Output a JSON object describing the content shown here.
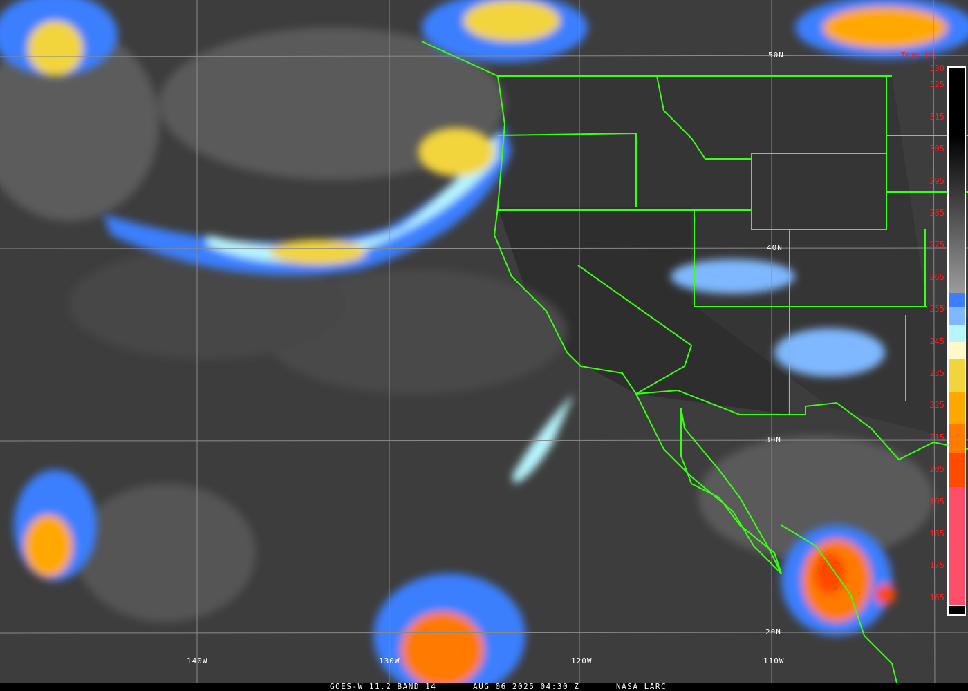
{
  "title_bar": {
    "satellite": "GOES-W 11.2 BAND 14",
    "datetime": "AUG 06 2025 04:30 Z",
    "credit": "NASA LARC"
  },
  "grid_labels": {
    "lon": [
      "140W",
      "130W",
      "120W",
      "110W"
    ],
    "lat": [
      "50N",
      "40N",
      "30N",
      "20N"
    ]
  },
  "colorbar": {
    "title": "Temp [K]",
    "ticks": [
      "330",
      "325",
      "315",
      "305",
      "295",
      "285",
      "275",
      "265",
      "255",
      "245",
      "235",
      "225",
      "215",
      "205",
      "195",
      "185",
      "175",
      "165"
    ],
    "colors": {
      "label": "#ff1a1a",
      "border": "#39ff14",
      "blue": "#3a7fff",
      "light_blue": "#7fb8ff",
      "cyan": "#b8f6ff",
      "pale_yellow": "#fff8c8",
      "yellow": "#f2d43c",
      "orange_yellow": "#ffa800",
      "orange": "#ff7a00",
      "red_orange": "#ff4a00",
      "pink": "#ff4d6a"
    }
  }
}
